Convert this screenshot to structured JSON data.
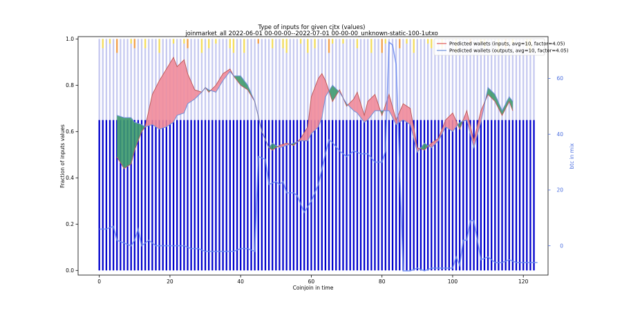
{
  "chart_data": {
    "type": "bar",
    "title": "Type of inputs for given cjtx (values)",
    "subtitle": "joinmarket_all 2022-06-01 00-00-00--2022-07-01 00-00-00_unknown-static-100-1utxo",
    "xlabel": "Coinjoin in time",
    "ylabel": "Fraction of inputs values",
    "y2label": "btc in mix",
    "xlim": [
      -6,
      127
    ],
    "ylim": [
      -0.02,
      1.01
    ],
    "y2lim": [
      -10.5,
      75
    ],
    "x_ticks": [
      0,
      20,
      40,
      60,
      80,
      100,
      120
    ],
    "y_ticks": [
      0.0,
      0.2,
      0.4,
      0.6,
      0.8,
      1.0
    ],
    "y2_ticks": [
      0,
      20,
      40,
      60
    ],
    "grid": false,
    "legend_position": "top-right",
    "colors": {
      "bar_blue": "#0000cd",
      "bar_light": "#c6c9f0",
      "bar_yellow": "#f5df5c",
      "bar_orange": "#f4a14a",
      "input_line": "#e05a5a",
      "output_line": "#6d8fd8",
      "fill_red": "#f18b9a",
      "fill_green": "#3d9a6b",
      "btc_line": "#6b8af0",
      "right_axis": "#4c6fe0",
      "grey_line": "#666666"
    },
    "bars": {
      "x_count": 124,
      "blue_fraction": 0.65,
      "light_fraction": 0.35
    },
    "legend": [
      "Predicted wallets (inputs, avg=10, factor=4.05)",
      "Predicted wallets (outputs, avg=10, factor=4.05)"
    ],
    "series": [
      {
        "name": "Predicted wallets (inputs, avg=10, factor=4.05)",
        "color": "#e05a5a",
        "x": [
          5,
          7,
          9,
          10,
          12,
          13,
          15,
          17,
          19,
          21,
          22,
          24,
          25,
          27,
          29,
          30,
          31,
          33,
          35,
          37,
          38,
          40,
          42,
          44,
          46,
          48,
          49,
          51,
          53,
          55,
          57,
          59,
          60,
          62,
          63,
          64,
          66,
          68,
          70,
          72,
          73,
          75,
          76,
          78,
          80,
          82,
          84,
          86,
          88,
          90,
          92,
          94,
          96,
          98,
          100,
          102,
          104,
          106,
          108,
          110,
          112,
          114,
          116,
          117
        ],
        "values": [
          0.49,
          0.44,
          0.46,
          0.52,
          0.6,
          0.62,
          0.76,
          0.82,
          0.87,
          0.92,
          0.88,
          0.91,
          0.85,
          0.78,
          0.77,
          0.79,
          0.77,
          0.8,
          0.85,
          0.87,
          0.84,
          0.8,
          0.78,
          0.73,
          0.6,
          0.53,
          0.52,
          0.54,
          0.55,
          0.54,
          0.57,
          0.62,
          0.75,
          0.83,
          0.85,
          0.82,
          0.73,
          0.78,
          0.71,
          0.74,
          0.77,
          0.67,
          0.73,
          0.76,
          0.67,
          0.76,
          0.65,
          0.72,
          0.7,
          0.53,
          0.52,
          0.55,
          0.57,
          0.65,
          0.68,
          0.61,
          0.69,
          0.56,
          0.69,
          0.76,
          0.73,
          0.67,
          0.73,
          0.69
        ]
      },
      {
        "name": "Predicted wallets (outputs, avg=10, factor=4.05)",
        "color": "#6d8fd8",
        "x": [
          5,
          7,
          9,
          10,
          12,
          13,
          15,
          17,
          19,
          21,
          22,
          24,
          25,
          27,
          29,
          30,
          31,
          33,
          35,
          37,
          38,
          40,
          42,
          44,
          46,
          48,
          49,
          51,
          53,
          55,
          57,
          59,
          60,
          62,
          63,
          64,
          66,
          68,
          70,
          72,
          73,
          75,
          76,
          78,
          80,
          82,
          84,
          86,
          88,
          90,
          92,
          94,
          96,
          98,
          100,
          102,
          104,
          106,
          108,
          110,
          112,
          114,
          116,
          117
        ],
        "values": [
          0.67,
          0.66,
          0.66,
          0.64,
          0.63,
          0.62,
          0.63,
          0.61,
          0.62,
          0.64,
          0.67,
          0.68,
          0.72,
          0.74,
          0.77,
          0.79,
          0.78,
          0.77,
          0.82,
          0.86,
          0.84,
          0.84,
          0.8,
          0.73,
          0.6,
          0.53,
          0.55,
          0.53,
          0.54,
          0.55,
          0.56,
          0.56,
          0.59,
          0.62,
          0.66,
          0.75,
          0.8,
          0.77,
          0.72,
          0.69,
          0.68,
          0.64,
          0.65,
          0.69,
          0.69,
          0.69,
          0.63,
          0.65,
          0.63,
          0.51,
          0.55,
          0.53,
          0.56,
          0.62,
          0.6,
          0.64,
          0.65,
          0.53,
          0.64,
          0.79,
          0.76,
          0.69,
          0.75,
          0.73
        ]
      },
      {
        "name": "btc in mix",
        "axis": "right",
        "x": [
          0,
          2,
          4,
          5,
          7,
          9,
          10,
          11,
          12,
          14,
          16,
          18,
          20,
          22,
          24,
          26,
          28,
          30,
          32,
          34,
          36,
          38,
          40,
          42,
          44,
          45,
          47,
          48,
          50,
          51,
          52,
          53,
          54,
          55,
          56,
          57,
          58,
          60,
          62,
          64,
          65,
          66,
          68,
          70,
          72,
          74,
          75,
          76,
          78,
          80,
          81,
          82,
          83,
          84,
          86,
          88,
          90,
          92,
          94,
          96,
          98,
          100,
          101,
          102,
          103,
          104,
          105,
          106,
          108,
          110,
          112,
          114,
          116,
          118,
          120,
          122,
          124
        ],
        "values": [
          6,
          6,
          7,
          2,
          1,
          0,
          2,
          6,
          0,
          2,
          0,
          0,
          0,
          0,
          0,
          -1,
          -1,
          -2,
          -2,
          -2,
          -2,
          -2,
          -1,
          -1,
          -2,
          32,
          31,
          22,
          23,
          22,
          23,
          19,
          19,
          19,
          18,
          15,
          12,
          16,
          22,
          33,
          38,
          37,
          34,
          32,
          34,
          33,
          33,
          33,
          30,
          30,
          34,
          73,
          72,
          65,
          -9,
          -9,
          -8,
          -9,
          -8,
          -8,
          -8,
          -8,
          -4,
          -7,
          2,
          2,
          9,
          9,
          -5,
          -4,
          -6,
          -6,
          -5,
          -6,
          -6,
          -6,
          -6
        ]
      }
    ]
  }
}
